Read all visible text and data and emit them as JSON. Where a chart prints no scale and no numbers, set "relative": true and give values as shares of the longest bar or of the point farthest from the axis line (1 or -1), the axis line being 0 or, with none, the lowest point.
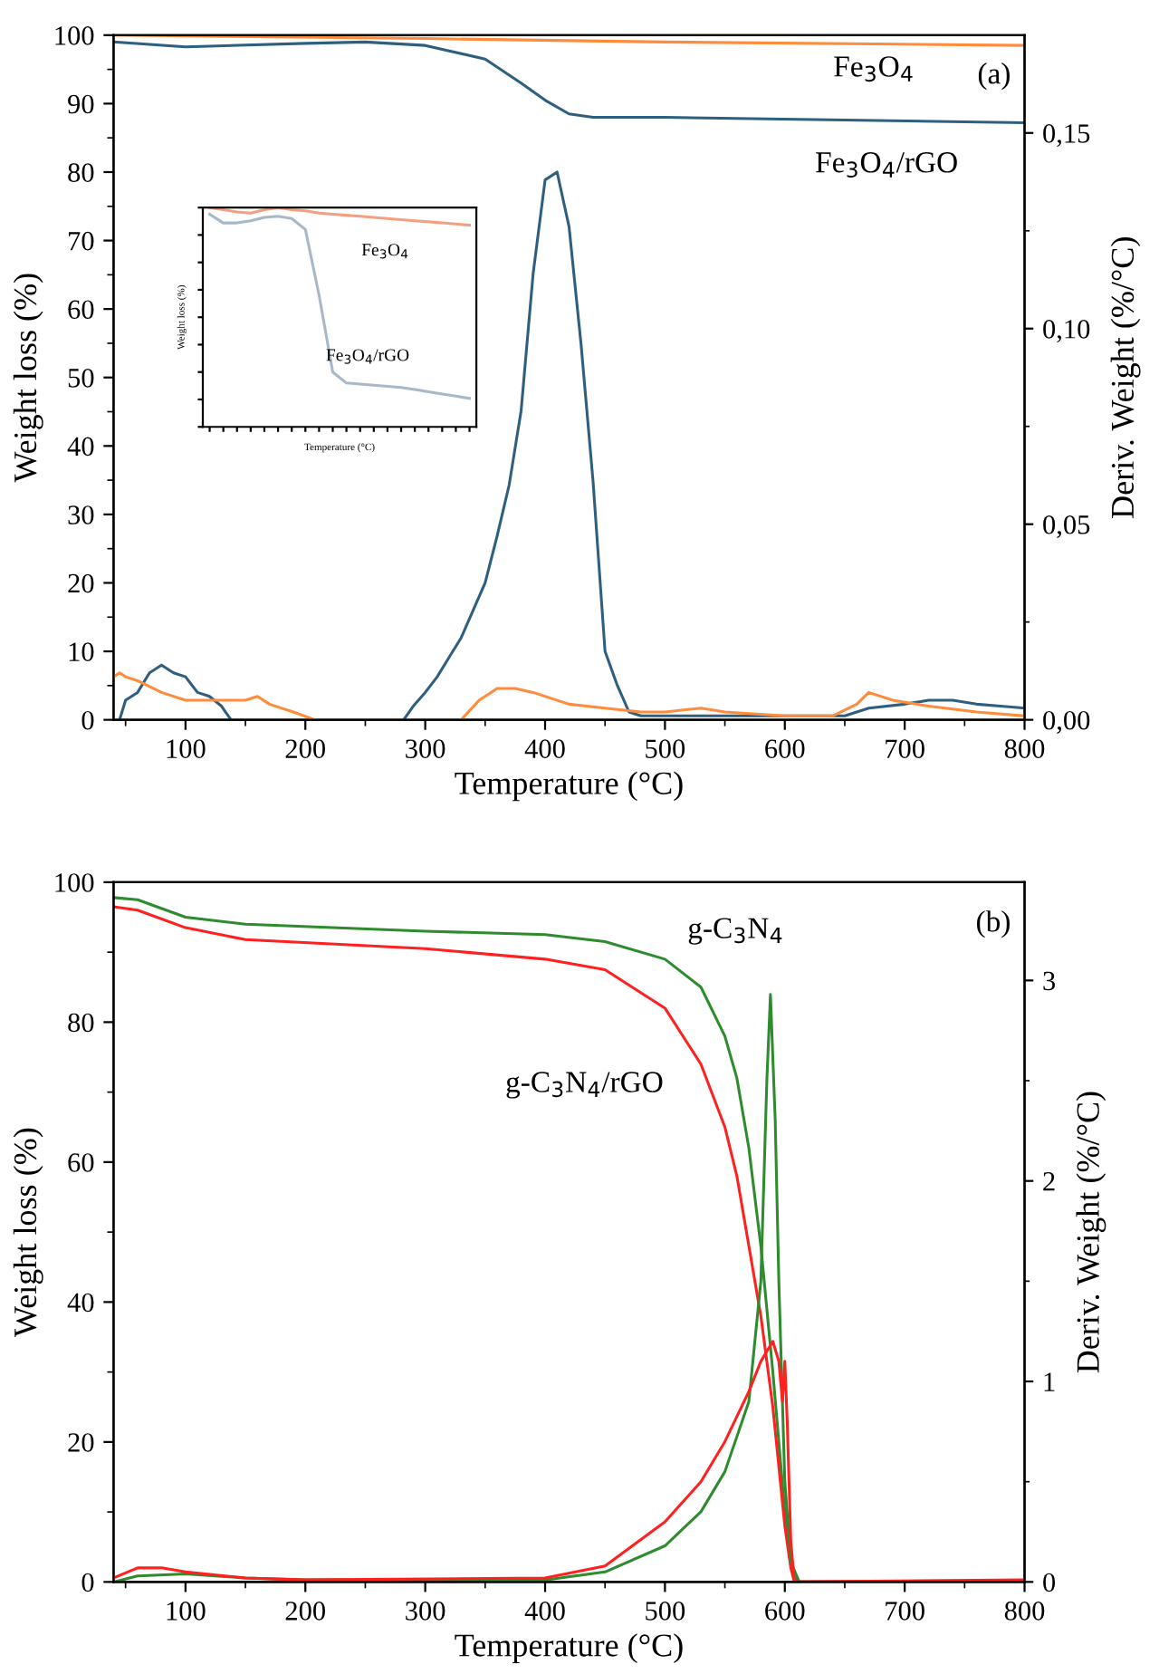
{
  "chart_data": [
    {
      "type": "line",
      "xlabel": "Temperature (°C)",
      "ylabel": "Weight loss (%)",
      "y2label": "Deriv. Weight (%/°C)",
      "xlim": [
        40,
        800
      ],
      "ylim": [
        0,
        100
      ],
      "y2lim": [
        0,
        0.175
      ],
      "xticks": [
        100,
        200,
        300,
        400,
        500,
        600,
        700,
        800,
        {
          "value": 50,
          "label": null
        },
        {
          "value": 150,
          "label": null
        },
        {
          "value": 250,
          "label": null
        },
        {
          "value": 350,
          "label": null
        },
        {
          "value": 450,
          "label": null
        },
        {
          "value": 550,
          "label": null
        },
        {
          "value": 650,
          "label": null
        },
        {
          "value": 750,
          "label": null
        }
      ],
      "yticks": [
        0,
        10,
        20,
        30,
        40,
        50,
        60,
        70,
        80,
        90,
        100,
        {
          "value": 5,
          "label": null
        },
        {
          "value": 15,
          "label": null
        },
        {
          "value": 25,
          "label": null
        },
        {
          "value": 35,
          "label": null
        },
        {
          "value": 45,
          "label": null
        },
        {
          "value": 55,
          "label": null
        },
        {
          "value": 65,
          "label": null
        },
        {
          "value": 75,
          "label": null
        },
        {
          "value": 85,
          "label": null
        },
        {
          "value": 95,
          "label": null
        }
      ],
      "y2ticks": [
        {
          "value": 0,
          "label": "0,00"
        },
        {
          "value": 0.05,
          "label": "0,05"
        },
        {
          "value": 0.1,
          "label": "0,10"
        },
        {
          "value": 0.15,
          "label": "0,15"
        },
        {
          "value": 0.025,
          "label": null
        },
        {
          "value": 0.075,
          "label": null
        },
        {
          "value": 0.125,
          "label": null
        }
      ],
      "series": [
        {
          "name": "Fe$_{3}$O$_{4}$",
          "color": "#ff8c3c",
          "axis": "y",
          "x": [
            40,
            300,
            500,
            800
          ],
          "values": [
            100,
            99.5,
            99,
            98.5
          ]
        },
        {
          "name": "Fe$_{3}$O$_{4}$/rGO",
          "color": "#2f5f7f",
          "axis": "y",
          "x": [
            40,
            100,
            200,
            250,
            300,
            350,
            380,
            400,
            420,
            440,
            500,
            800
          ],
          "values": [
            99,
            98.3,
            98.8,
            99,
            98.5,
            96.5,
            93,
            90.5,
            88.5,
            88,
            88,
            87.2
          ]
        },
        {
          "color": "#2f5f7f",
          "axis": "y2",
          "x": [
            45,
            50,
            60,
            70,
            80,
            90,
            100,
            110,
            120,
            130,
            138,
            210,
            282,
            290,
            300,
            310,
            320,
            330,
            340,
            350,
            360,
            370,
            380,
            390,
            400,
            410,
            420,
            430,
            440,
            450,
            460,
            470,
            480,
            500,
            550,
            600,
            650,
            670,
            700,
            720,
            740,
            760,
            780,
            800
          ],
          "values": [
            0,
            0.005,
            0.007,
            0.012,
            0.014,
            0.012,
            0.011,
            0.007,
            0.006,
            0.0035,
            0,
            null,
            0,
            0.0035,
            0.007,
            0.011,
            0.016,
            0.021,
            0.028,
            0.035,
            0.047,
            0.06,
            0.079,
            0.114,
            0.138,
            0.14,
            0.126,
            0.096,
            0.061,
            0.0175,
            0.009,
            0.002,
            0.001,
            0.001,
            0.001,
            0.001,
            0.001,
            0.003,
            0.004,
            0.005,
            0.005,
            0.004,
            0.0035,
            0.003
          ]
        },
        {
          "color": "#ff8c3c",
          "axis": "y2",
          "x": [
            40,
            45,
            50,
            60,
            80,
            100,
            120,
            150,
            160,
            170,
            190,
            208,
            270,
            330,
            345,
            360,
            375,
            390,
            420,
            450,
            480,
            500,
            530,
            550,
            600,
            640,
            660,
            670,
            690,
            720,
            760,
            800
          ],
          "values": [
            0.011,
            0.012,
            0.011,
            0.01,
            0.007,
            0.005,
            0.005,
            0.005,
            0.006,
            0.004,
            0.002,
            0,
            null,
            0,
            0.005,
            0.008,
            0.008,
            0.007,
            0.004,
            0.003,
            0.002,
            0.002,
            0.003,
            0.002,
            0.001,
            0.001,
            0.004,
            0.007,
            0.005,
            0.0035,
            0.002,
            0.001
          ]
        }
      ],
      "annotations": [
        "(a)"
      ]
    },
    {
      "type": "line",
      "relative": true,
      "xlabel": "Temperature (°C)",
      "ylabel": "Weight loss (%)",
      "categories": [
        null,
        null,
        null,
        null,
        null,
        null,
        null,
        null,
        null,
        null,
        null,
        null,
        null,
        null,
        null,
        null,
        null,
        null,
        null,
        null
      ],
      "series": [
        {
          "name": "Fe$_{3}$O$_{4}$",
          "color": "#f4a080",
          "values": [
            1.0,
            0.99,
            0.98,
            0.975,
            0.99,
            1.0,
            0.99,
            0.985,
            0.975,
            0.97,
            0.965,
            0.96,
            0.955,
            0.95,
            0.945,
            0.94,
            0.935,
            0.93,
            0.925,
            0.92
          ]
        },
        {
          "name": "Fe$_{3}$O$_{4}$/rGO",
          "color": "#a8b8c8",
          "values": [
            0.97,
            0.93,
            0.93,
            0.94,
            0.955,
            0.96,
            0.95,
            0.9,
            0.6,
            0.25,
            0.2,
            0.195,
            0.19,
            0.185,
            0.18,
            0.17,
            0.16,
            0.15,
            0.14,
            0.13
          ]
        }
      ]
    },
    {
      "type": "line",
      "xlabel": "Temperature (°C)",
      "ylabel": "Weight loss (%)",
      "y2label": "Deriv. Weight (%/°C)",
      "xlim": [
        40,
        800
      ],
      "ylim": [
        0,
        100
      ],
      "y2lim": [
        0,
        3.49
      ],
      "xticks": [
        100,
        200,
        300,
        400,
        500,
        600,
        700,
        800,
        {
          "value": 50,
          "label": null
        },
        {
          "value": 150,
          "label": null
        },
        {
          "value": 250,
          "label": null
        },
        {
          "value": 350,
          "label": null
        },
        {
          "value": 450,
          "label": null
        },
        {
          "value": 550,
          "label": null
        },
        {
          "value": 650,
          "label": null
        },
        {
          "value": 750,
          "label": null
        }
      ],
      "yticks": [
        0,
        20,
        40,
        60,
        80,
        100,
        {
          "value": 10,
          "label": null
        },
        {
          "value": 30,
          "label": null
        },
        {
          "value": 50,
          "label": null
        },
        {
          "value": 70,
          "label": null
        },
        {
          "value": 90,
          "label": null
        }
      ],
      "y2ticks": [
        0,
        1,
        2,
        3,
        {
          "value": 0.5,
          "label": null
        },
        {
          "value": 1.5,
          "label": null
        },
        {
          "value": 2.5,
          "label": null
        }
      ],
      "series": [
        {
          "name": "g-C$_{3}$N$_{4}$",
          "color": "#2e8b2e",
          "axis": "y",
          "x": [
            40,
            60,
            100,
            150,
            300,
            400,
            450,
            500,
            530,
            550,
            560,
            570,
            580,
            590,
            600,
            605,
            610,
            800
          ],
          "values": [
            97.8,
            97.5,
            95,
            94,
            93,
            92.5,
            91.5,
            89,
            85,
            78,
            72,
            62,
            48,
            30,
            10,
            3,
            0,
            0
          ]
        },
        {
          "name": "g-C$_{3}$N$_{4}$/rGO",
          "color": "#ff2020",
          "axis": "y",
          "x": [
            40,
            60,
            100,
            150,
            300,
            400,
            450,
            500,
            530,
            550,
            560,
            570,
            580,
            590,
            600,
            605,
            608,
            800
          ],
          "values": [
            96.5,
            96,
            93.5,
            91.8,
            90.5,
            89,
            87.5,
            82,
            74,
            65,
            58,
            48,
            38,
            25,
            8,
            2,
            0,
            0
          ]
        },
        {
          "color": "#2e8b2e",
          "axis": "y2",
          "x": [
            40,
            60,
            100,
            150,
            200,
            400,
            450,
            500,
            530,
            550,
            570,
            580,
            585,
            588,
            592,
            595,
            600,
            605,
            612,
            800
          ],
          "values": [
            0,
            0.03,
            0.04,
            0.02,
            0.01,
            0.01,
            0.05,
            0.18,
            0.35,
            0.55,
            0.9,
            1.5,
            2.5,
            2.93,
            2.3,
            1.5,
            0.5,
            0.1,
            0,
            0
          ]
        },
        {
          "color": "#ff2020",
          "axis": "y2",
          "x": [
            40,
            60,
            80,
            100,
            150,
            200,
            400,
            450,
            500,
            530,
            550,
            570,
            580,
            590,
            595,
            598,
            600,
            602,
            605,
            608,
            800
          ],
          "values": [
            0.02,
            0.07,
            0.07,
            0.05,
            0.02,
            0.01,
            0.02,
            0.08,
            0.3,
            0.5,
            0.7,
            0.95,
            1.1,
            1.2,
            1.1,
            0.9,
            1.1,
            0.8,
            0.2,
            0,
            0.01
          ]
        }
      ],
      "annotations": [
        "(b)"
      ]
    }
  ]
}
